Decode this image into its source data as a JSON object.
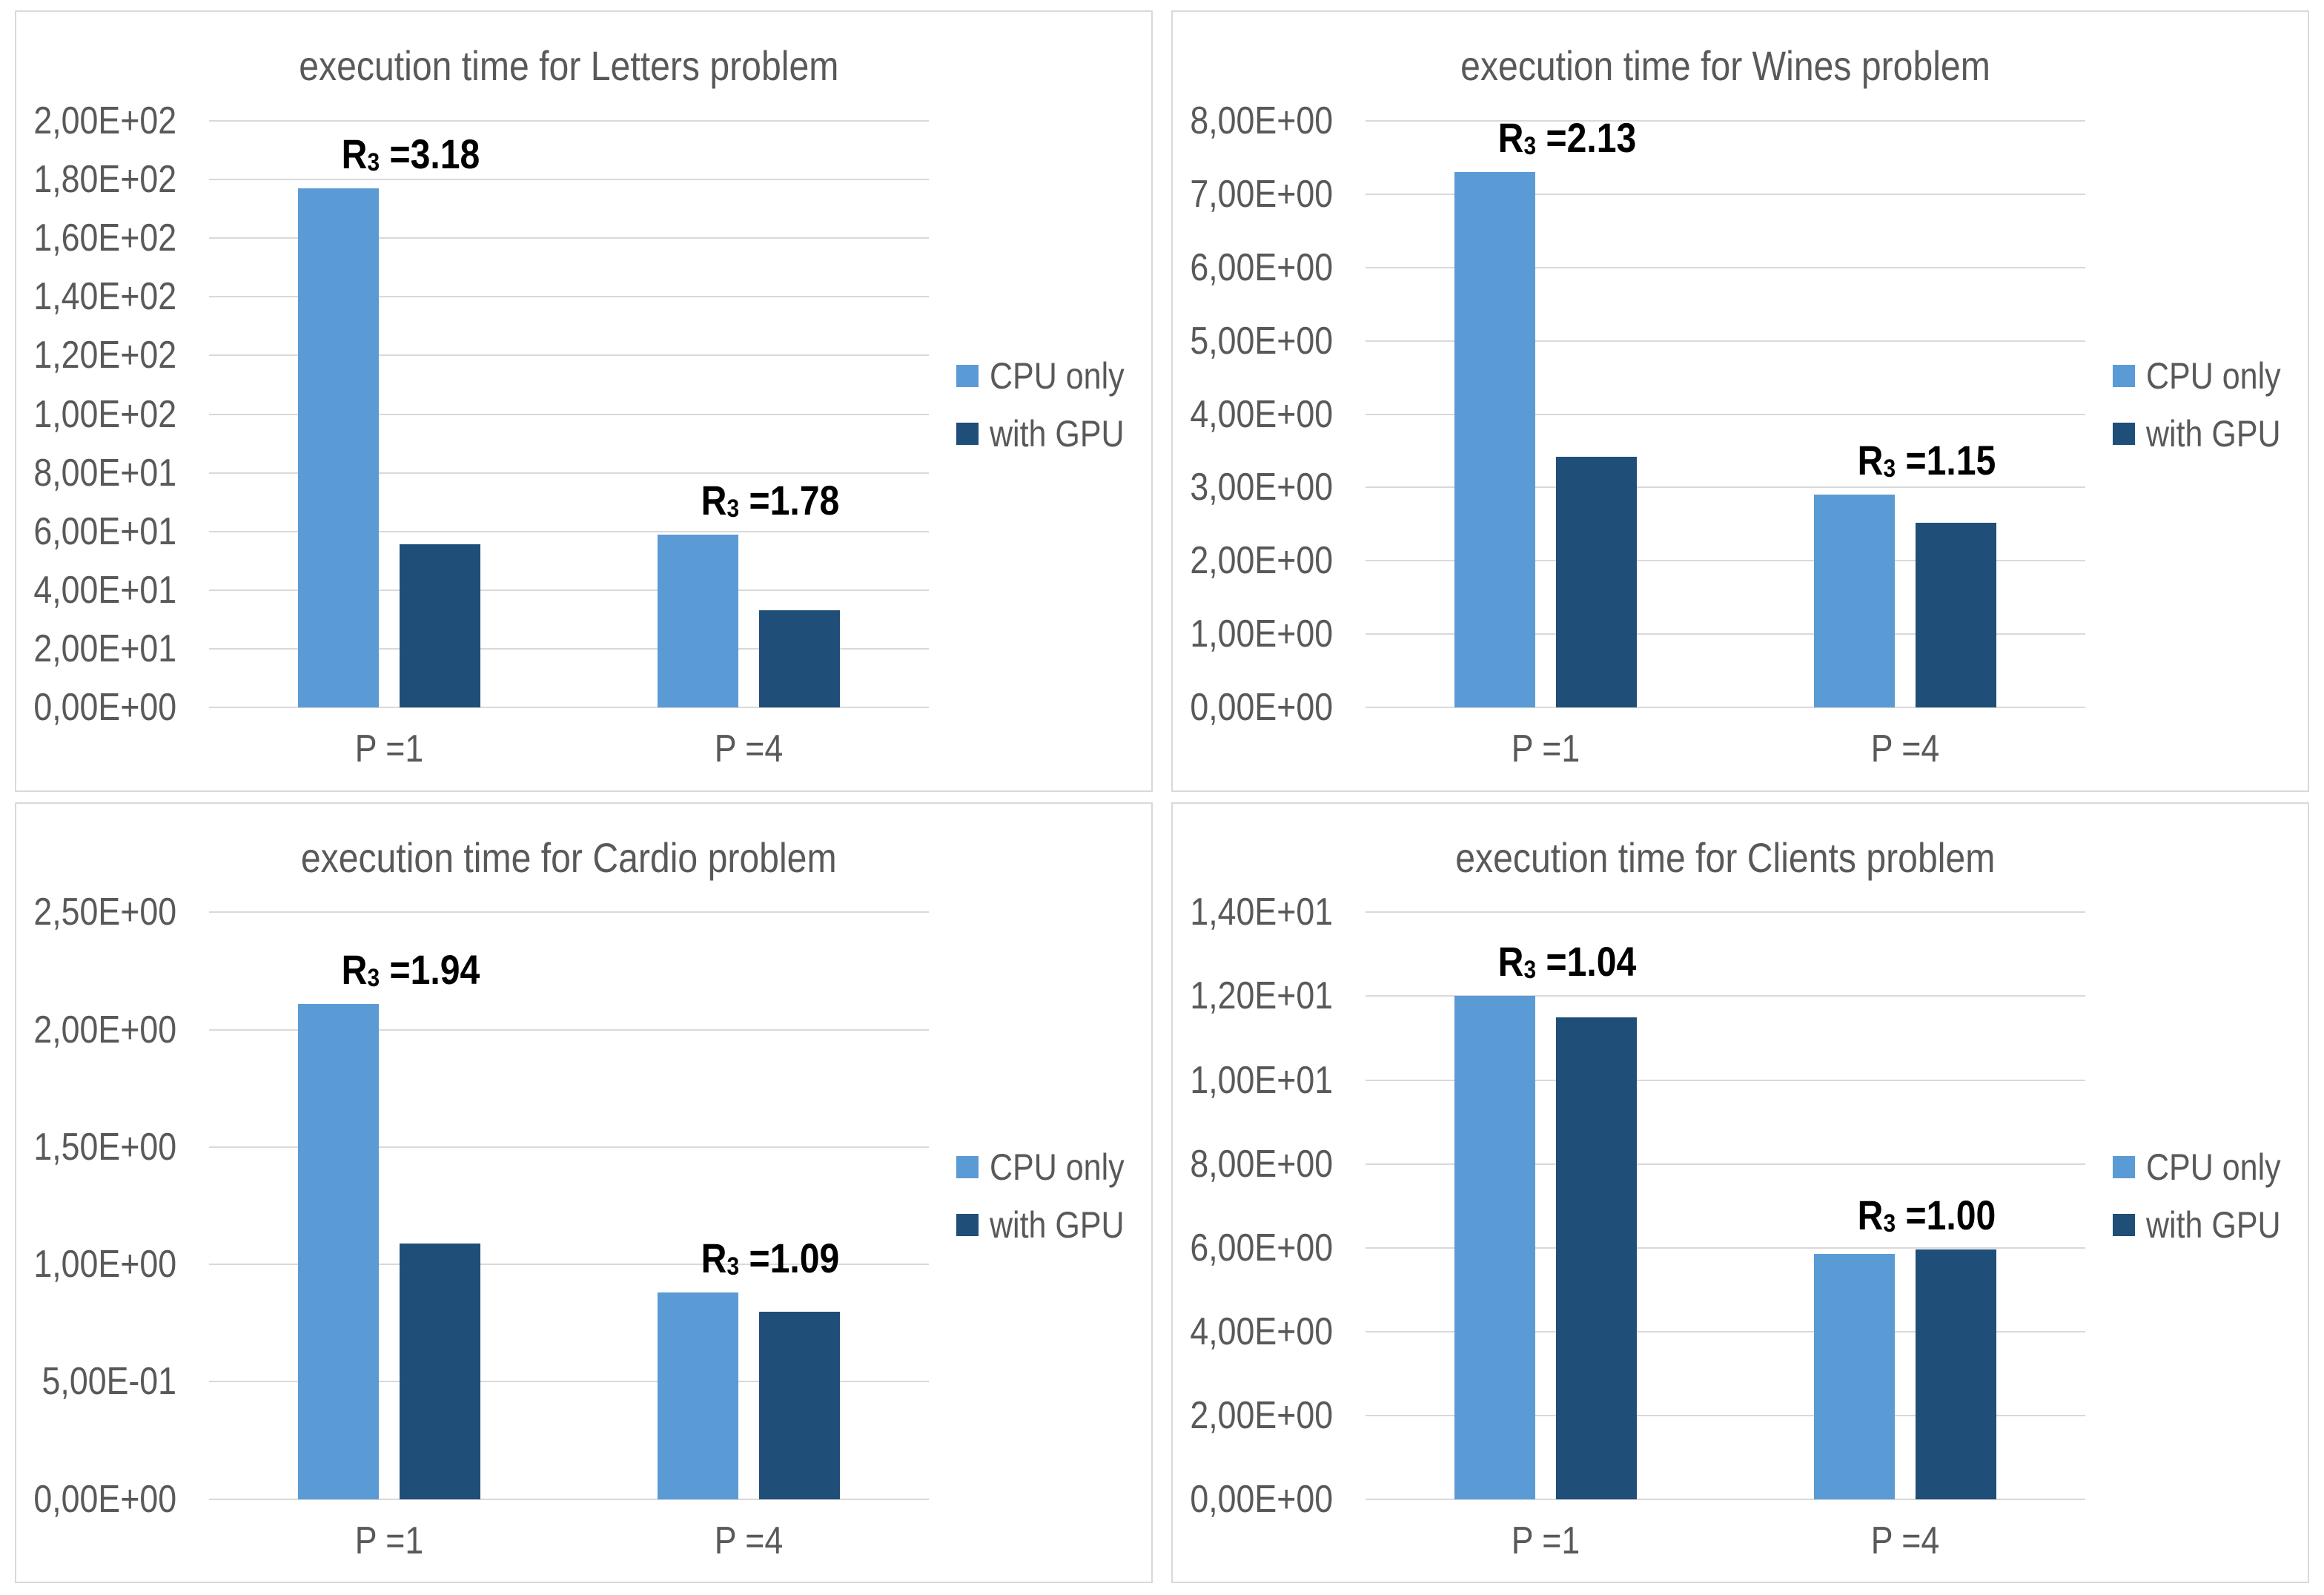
{
  "page": {
    "background": "#FFFFFF",
    "panel_border_color": "#D9D9D9",
    "grid_color": "#D9D9D9",
    "axis_text_color": "#595959",
    "annotation_text_color": "#000000"
  },
  "chart_data": [
    {
      "id": "letters",
      "type": "bar",
      "title": "execution time for Letters problem",
      "categories": [
        "P =1",
        "P =4"
      ],
      "series": [
        {
          "name": "CPU only",
          "color": "#5B9BD5",
          "values": [
            177,
            59
          ]
        },
        {
          "name": "with GPU",
          "color": "#1F4E79",
          "values": [
            55.6,
            33.1
          ]
        }
      ],
      "annotations": [
        {
          "group": 0,
          "label": "R",
          "subscript": "3",
          "text": " =3.18"
        },
        {
          "group": 1,
          "label": "R",
          "subscript": "3",
          "text": " =1.78"
        }
      ],
      "ylim": [
        0,
        200
      ],
      "y_tick_labels": [
        "0,00E+00",
        "2,00E+01",
        "4,00E+01",
        "6,00E+01",
        "8,00E+01",
        "1,00E+02",
        "1,20E+02",
        "1,40E+02",
        "1,60E+02",
        "1,80E+02",
        "2,00E+02"
      ],
      "xlabel": "",
      "ylabel": "",
      "grid": true,
      "legend_position": "right"
    },
    {
      "id": "wines",
      "type": "bar",
      "title": "execution time for Wines problem",
      "categories": [
        "P =1",
        "P =4"
      ],
      "series": [
        {
          "name": "CPU only",
          "color": "#5B9BD5",
          "values": [
            7.3,
            2.9
          ]
        },
        {
          "name": "with GPU",
          "color": "#1F4E79",
          "values": [
            3.42,
            2.52
          ]
        }
      ],
      "annotations": [
        {
          "group": 0,
          "label": "R",
          "subscript": "3",
          "text": " =2.13"
        },
        {
          "group": 1,
          "label": "R",
          "subscript": "3",
          "text": " =1.15"
        }
      ],
      "ylim": [
        0,
        8
      ],
      "y_tick_labels": [
        "0,00E+00",
        "1,00E+00",
        "2,00E+00",
        "3,00E+00",
        "4,00E+00",
        "5,00E+00",
        "6,00E+00",
        "7,00E+00",
        "8,00E+00"
      ],
      "xlabel": "",
      "ylabel": "",
      "grid": true,
      "legend_position": "right"
    },
    {
      "id": "cardio",
      "type": "bar",
      "title": "execution time for Cardio problem",
      "categories": [
        "P =1",
        "P =4"
      ],
      "series": [
        {
          "name": "CPU only",
          "color": "#5B9BD5",
          "values": [
            2.11,
            0.88
          ]
        },
        {
          "name": "with GPU",
          "color": "#1F4E79",
          "values": [
            1.09,
            0.8
          ]
        }
      ],
      "annotations": [
        {
          "group": 0,
          "label": "R",
          "subscript": "3",
          "text": " =1.94"
        },
        {
          "group": 1,
          "label": "R",
          "subscript": "3",
          "text": " =1.09"
        }
      ],
      "ylim": [
        0,
        2.5
      ],
      "y_tick_labels": [
        "0,00E+00",
        "5,00E-01",
        "1,00E+00",
        "1,50E+00",
        "2,00E+00",
        "2,50E+00"
      ],
      "xlabel": "",
      "ylabel": "",
      "grid": true,
      "legend_position": "right"
    },
    {
      "id": "clients",
      "type": "bar",
      "title": "execution time for Clients problem",
      "categories": [
        "P =1",
        "P =4"
      ],
      "series": [
        {
          "name": "CPU only",
          "color": "#5B9BD5",
          "values": [
            12.0,
            5.85
          ]
        },
        {
          "name": "with GPU",
          "color": "#1F4E79",
          "values": [
            11.5,
            5.95
          ]
        }
      ],
      "annotations": [
        {
          "group": 0,
          "label": "R",
          "subscript": "3",
          "text": " =1.04"
        },
        {
          "group": 1,
          "label": "R",
          "subscript": "3",
          "text": " =1.00"
        }
      ],
      "ylim": [
        0,
        14
      ],
      "y_tick_labels": [
        "0,00E+00",
        "2,00E+00",
        "4,00E+00",
        "6,00E+00",
        "8,00E+00",
        "1,00E+01",
        "1,20E+01",
        "1,40E+01"
      ],
      "xlabel": "",
      "ylabel": "",
      "grid": true,
      "legend_position": "right"
    }
  ]
}
